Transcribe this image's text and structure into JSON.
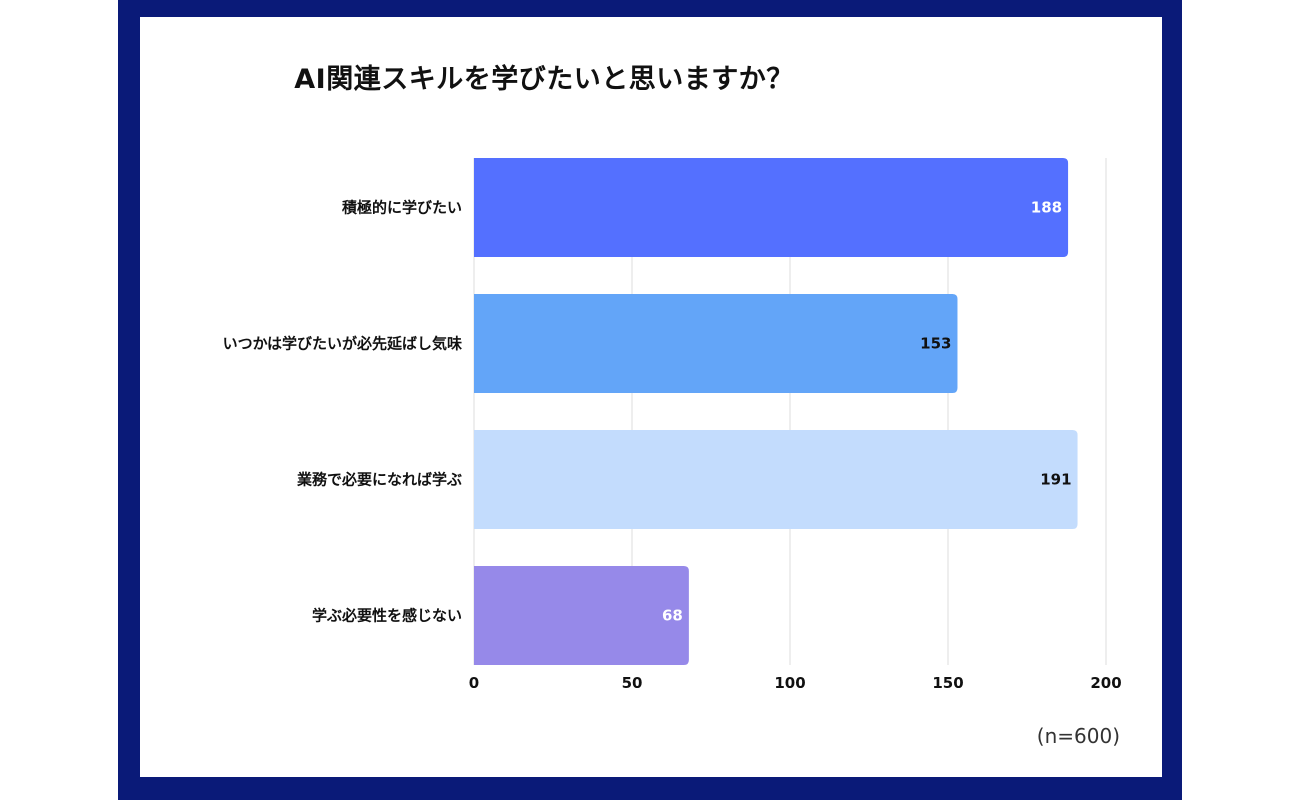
{
  "chart_data": {
    "type": "bar",
    "orientation": "horizontal",
    "title": "AI関連スキルを学びたいと思いますか？",
    "categories": [
      "積極的に学びたい",
      "いつかは学びたいが必先延ばし気味",
      "業務で必要になれば学ぶ",
      "学ぶ必要性を感じない"
    ],
    "values": [
      188,
      153,
      191,
      68
    ],
    "colors": [
      "#5470ff",
      "#63a5f8",
      "#c3dcfd",
      "#9689e9"
    ],
    "label_colors": [
      "#ffffff",
      "#111111",
      "#111111",
      "#ffffff"
    ],
    "x_ticks": [
      "0",
      "50",
      "100",
      "150",
      "200"
    ],
    "xlim": [
      0,
      200
    ],
    "grid": "vertical",
    "note": "(n=600)"
  }
}
